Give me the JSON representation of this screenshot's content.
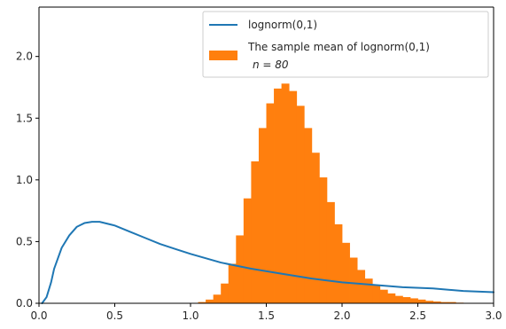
{
  "chart_data": {
    "type": "line",
    "title": "",
    "xlabel": "",
    "ylabel": "",
    "xlim": [
      0.0,
      3.0
    ],
    "ylim": [
      0.0,
      2.4
    ],
    "grid": false,
    "legend_placement": "top-right",
    "x_ticks": [
      "0.0",
      "0.5",
      "1.0",
      "1.5",
      "2.0",
      "2.5",
      "3.0"
    ],
    "x_tick_values": [
      0.0,
      0.5,
      1.0,
      1.5,
      2.0,
      2.5,
      3.0
    ],
    "y_ticks": [
      "0.0",
      "0.5",
      "1.0",
      "1.5",
      "2.0"
    ],
    "y_tick_values": [
      0.0,
      0.5,
      1.0,
      1.5,
      2.0
    ],
    "series": [
      {
        "name": "lognorm(0,1)",
        "kind": "line",
        "color": "#1f77b4",
        "x": [
          0.02,
          0.05,
          0.08,
          0.1,
          0.15,
          0.2,
          0.25,
          0.3,
          0.35,
          0.4,
          0.5,
          0.6,
          0.7,
          0.8,
          0.9,
          1.0,
          1.2,
          1.4,
          1.6,
          1.8,
          2.0,
          2.2,
          2.4,
          2.6,
          2.8,
          3.0
        ],
        "y": [
          0.0,
          0.05,
          0.17,
          0.28,
          0.45,
          0.55,
          0.62,
          0.65,
          0.66,
          0.66,
          0.63,
          0.58,
          0.53,
          0.48,
          0.44,
          0.4,
          0.33,
          0.28,
          0.24,
          0.2,
          0.17,
          0.15,
          0.13,
          0.12,
          0.1,
          0.09
        ]
      },
      {
        "name": "The sample mean of lognorm(0,1)",
        "name_line2": "n = 80",
        "kind": "histogram",
        "color": "#ff7f0e",
        "x": [
          0.95,
          1.0,
          1.05,
          1.1,
          1.15,
          1.2,
          1.25,
          1.3,
          1.35,
          1.4,
          1.45,
          1.5,
          1.55,
          1.6,
          1.65,
          1.7,
          1.75,
          1.8,
          1.85,
          1.9,
          1.95,
          2.0,
          2.05,
          2.1,
          2.15,
          2.2,
          2.25,
          2.3,
          2.35,
          2.4,
          2.45,
          2.5,
          2.55,
          2.6,
          2.65,
          2.7,
          2.75,
          2.8
        ],
        "y": [
          0.0,
          0.0,
          0.01,
          0.03,
          0.07,
          0.16,
          0.32,
          0.55,
          0.85,
          1.15,
          1.42,
          1.62,
          1.74,
          1.78,
          1.72,
          1.6,
          1.42,
          1.22,
          1.02,
          0.82,
          0.64,
          0.49,
          0.37,
          0.27,
          0.2,
          0.15,
          0.11,
          0.08,
          0.06,
          0.05,
          0.04,
          0.03,
          0.02,
          0.015,
          0.01,
          0.01,
          0.005,
          0.0
        ]
      }
    ]
  }
}
